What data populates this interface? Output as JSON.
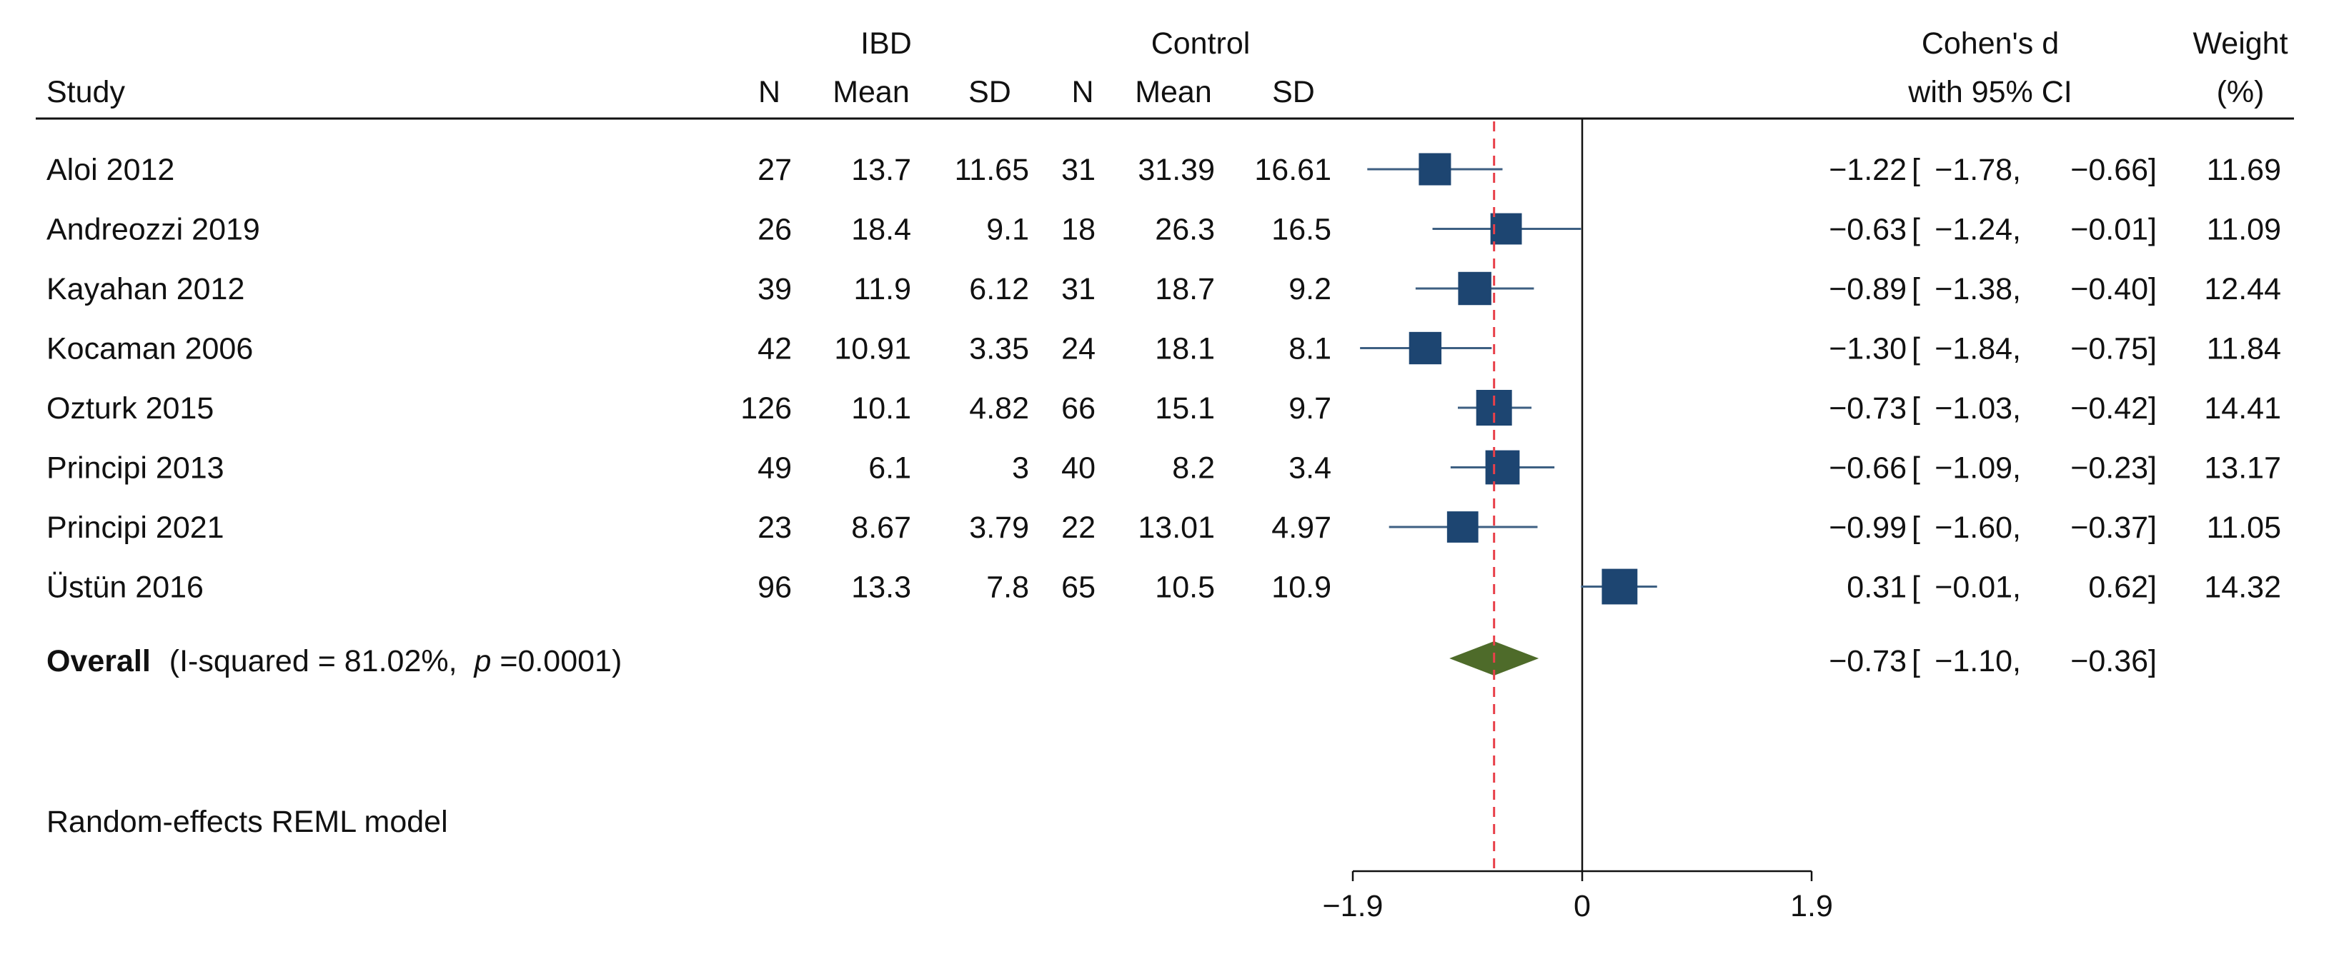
{
  "chart_data": {
    "type": "forest",
    "headers": {
      "study": "Study",
      "group1": "IBD",
      "group2": "Control",
      "n": "N",
      "mean": "Mean",
      "sd": "SD",
      "effect_line1": "Cohen's d",
      "effect_line2": "with 95% CI",
      "weight_line1": "Weight",
      "weight_line2": "(%)"
    },
    "studies": [
      {
        "name": "Aloi 2012",
        "n1": "27",
        "mean1": "13.7",
        "sd1": "11.65",
        "n2": "31",
        "mean2": "31.39",
        "sd2": "16.61",
        "d": -1.22,
        "lo": -1.78,
        "hi": -0.66,
        "d_text": "−1.22",
        "lo_text": "−1.78,",
        "hi_text": "−0.66]",
        "weight": 11.69,
        "weight_text": "11.69"
      },
      {
        "name": "Andreozzi 2019",
        "n1": "26",
        "mean1": "18.4",
        "sd1": "9.1",
        "n2": "18",
        "mean2": "26.3",
        "sd2": "16.5",
        "d": -0.63,
        "lo": -1.24,
        "hi": -0.01,
        "d_text": "−0.63",
        "lo_text": "−1.24,",
        "hi_text": "−0.01]",
        "weight": 11.09,
        "weight_text": "11.09"
      },
      {
        "name": "Kayahan 2012",
        "n1": "39",
        "mean1": "11.9",
        "sd1": "6.12",
        "n2": "31",
        "mean2": "18.7",
        "sd2": "9.2",
        "d": -0.89,
        "lo": -1.38,
        "hi": -0.4,
        "d_text": "−0.89",
        "lo_text": "−1.38,",
        "hi_text": "−0.40]",
        "weight": 12.44,
        "weight_text": "12.44"
      },
      {
        "name": "Kocaman 2006",
        "n1": "42",
        "mean1": "10.91",
        "sd1": "3.35",
        "n2": "24",
        "mean2": "18.1",
        "sd2": "8.1",
        "d": -1.3,
        "lo": -1.84,
        "hi": -0.75,
        "d_text": "−1.30",
        "lo_text": "−1.84,",
        "hi_text": "−0.75]",
        "weight": 11.84,
        "weight_text": "11.84"
      },
      {
        "name": "Ozturk 2015",
        "n1": "126",
        "mean1": "10.1",
        "sd1": "4.82",
        "n2": "66",
        "mean2": "15.1",
        "sd2": "9.7",
        "d": -0.73,
        "lo": -1.03,
        "hi": -0.42,
        "d_text": "−0.73",
        "lo_text": "−1.03,",
        "hi_text": "−0.42]",
        "weight": 14.41,
        "weight_text": "14.41"
      },
      {
        "name": "Principi 2013",
        "n1": "49",
        "mean1": "6.1",
        "sd1": "3",
        "n2": "40",
        "mean2": "8.2",
        "sd2": "3.4",
        "d": -0.66,
        "lo": -1.09,
        "hi": -0.23,
        "d_text": "−0.66",
        "lo_text": "−1.09,",
        "hi_text": "−0.23]",
        "weight": 13.17,
        "weight_text": "13.17"
      },
      {
        "name": "Principi 2021",
        "n1": "23",
        "mean1": "8.67",
        "sd1": "3.79",
        "n2": "22",
        "mean2": "13.01",
        "sd2": "4.97",
        "d": -0.99,
        "lo": -1.6,
        "hi": -0.37,
        "d_text": "−0.99",
        "lo_text": "−1.60,",
        "hi_text": "−0.37]",
        "weight": 11.05,
        "weight_text": "11.05"
      },
      {
        "name": "Üstün 2016",
        "n1": "96",
        "mean1": "13.3",
        "sd1": "7.8",
        "n2": "65",
        "mean2": "10.5",
        "sd2": "10.9",
        "d": 0.31,
        "lo": -0.01,
        "hi": 0.62,
        "d_text": "0.31",
        "lo_text": "−0.01,",
        "hi_text": "0.62]",
        "weight": 14.32,
        "weight_text": "14.32"
      }
    ],
    "overall": {
      "label_bold": "Overall",
      "label_pre": "(I-squared = 81.02%, ",
      "label_p": "p",
      "label_post": "=0.0001)",
      "d": -0.73,
      "lo": -1.1,
      "hi": -0.36,
      "d_text": "−0.73",
      "lo_text": "−1.10,",
      "hi_text": "−0.36]"
    },
    "model_note": "Random-effects REML model",
    "x_axis": {
      "range": [
        -1.9,
        1.9
      ],
      "ticks": [
        -1.9,
        0,
        1.9
      ],
      "tick_labels": [
        "−1.9",
        "0",
        "1.9"
      ],
      "null_line": 0
    },
    "colors": {
      "box": "#1d4571",
      "diamond": "#4e6b2a",
      "ci_line": "#3d5f82",
      "overall_line": "#e8404a",
      "text": "#111111"
    }
  }
}
